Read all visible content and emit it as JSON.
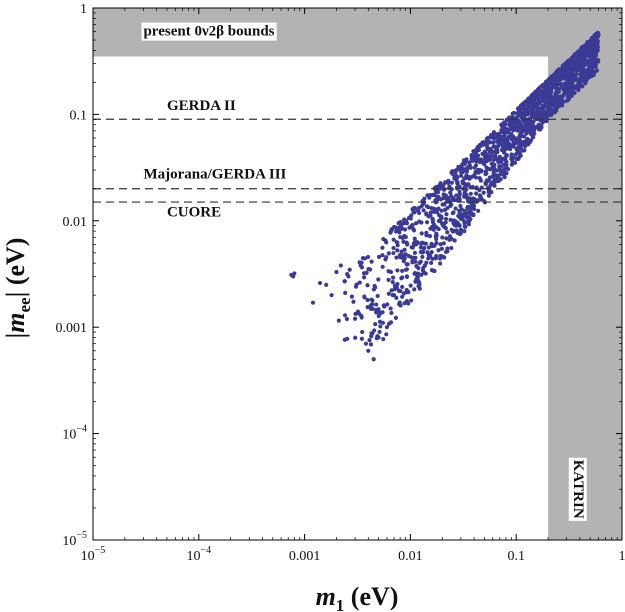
{
  "chart_data": {
    "type": "scatter",
    "xscale": "log",
    "yscale": "log",
    "xlim": [
      1e-05,
      1
    ],
    "ylim": [
      1e-05,
      1
    ],
    "xlabel": {
      "symbol": "m",
      "sub": "1",
      "unit": " (eV)"
    },
    "ylabel": {
      "left": "|",
      "symbol": "m",
      "sub": "ee",
      "right": "| (eV)"
    },
    "x_ticks": [
      {
        "value": 1e-05,
        "mant": "10",
        "exp": "−5"
      },
      {
        "value": 0.0001,
        "mant": "10",
        "exp": "−4"
      },
      {
        "value": 0.001,
        "text": "0.001"
      },
      {
        "value": 0.01,
        "text": "0.01"
      },
      {
        "value": 0.1,
        "text": "0.1"
      },
      {
        "value": 1,
        "text": "1"
      }
    ],
    "y_ticks": [
      {
        "value": 1e-05,
        "mant": "10",
        "exp": "−5"
      },
      {
        "value": 0.0001,
        "mant": "10",
        "exp": "−4"
      },
      {
        "value": 0.001,
        "text": "0.001"
      },
      {
        "value": 0.01,
        "text": "0.01"
      },
      {
        "value": 0.1,
        "text": "0.1"
      },
      {
        "value": 1,
        "text": "1"
      }
    ],
    "excluded_regions": [
      {
        "label": "present 0ν2β bounds",
        "axis": "y",
        "from": 0.35,
        "to": 1,
        "label_at": [
          3e-05,
          0.55
        ]
      },
      {
        "label": "KATRIN",
        "axis": "x",
        "from": 0.2,
        "to": 1,
        "label_at": [
          0.35,
          3e-05
        ]
      }
    ],
    "sensitivity_lines": [
      {
        "label": "GERDA II",
        "y": 0.09,
        "label_at": [
          5e-05,
          0.11
        ]
      },
      {
        "label": "Majorana/GERDA III",
        "y": 0.02,
        "label_at": [
          3e-05,
          0.025
        ]
      },
      {
        "label": "CUORE",
        "y": 0.015,
        "label_at": [
          5e-05,
          0.011
        ]
      }
    ],
    "scatter_region": {
      "x_min": 0.00075,
      "x_max": 0.6,
      "y_min": 0.0005,
      "y_max": 0.6,
      "points": [
        [
          0.00075,
          0.0031
        ],
        [
          0.0008,
          0.0032
        ],
        [
          0.00078,
          0.003
        ],
        [
          0.0012,
          0.0017
        ],
        [
          0.0014,
          0.0026
        ],
        [
          0.0016,
          0.0025
        ],
        [
          0.0018,
          0.002
        ],
        [
          0.002,
          0.0033
        ],
        [
          0.0022,
          0.0038
        ],
        [
          0.0024,
          0.0027
        ],
        [
          0.0026,
          0.003
        ],
        [
          0.003,
          0.0012
        ],
        [
          0.0032,
          0.0014
        ],
        [
          0.0035,
          0.0009
        ],
        [
          0.0038,
          0.0007
        ],
        [
          0.004,
          0.0006
        ],
        [
          0.0045,
          0.0005
        ],
        [
          0.005,
          0.0008
        ],
        [
          0.0055,
          0.0011
        ],
        [
          0.006,
          0.001
        ],
        [
          0.0065,
          0.0015
        ],
        [
          0.007,
          0.002
        ]
      ]
    },
    "colors": {
      "points": "#3b3b96",
      "excluded": "#b3b3b3",
      "dashed": "#333333",
      "frame": "#000000"
    }
  }
}
